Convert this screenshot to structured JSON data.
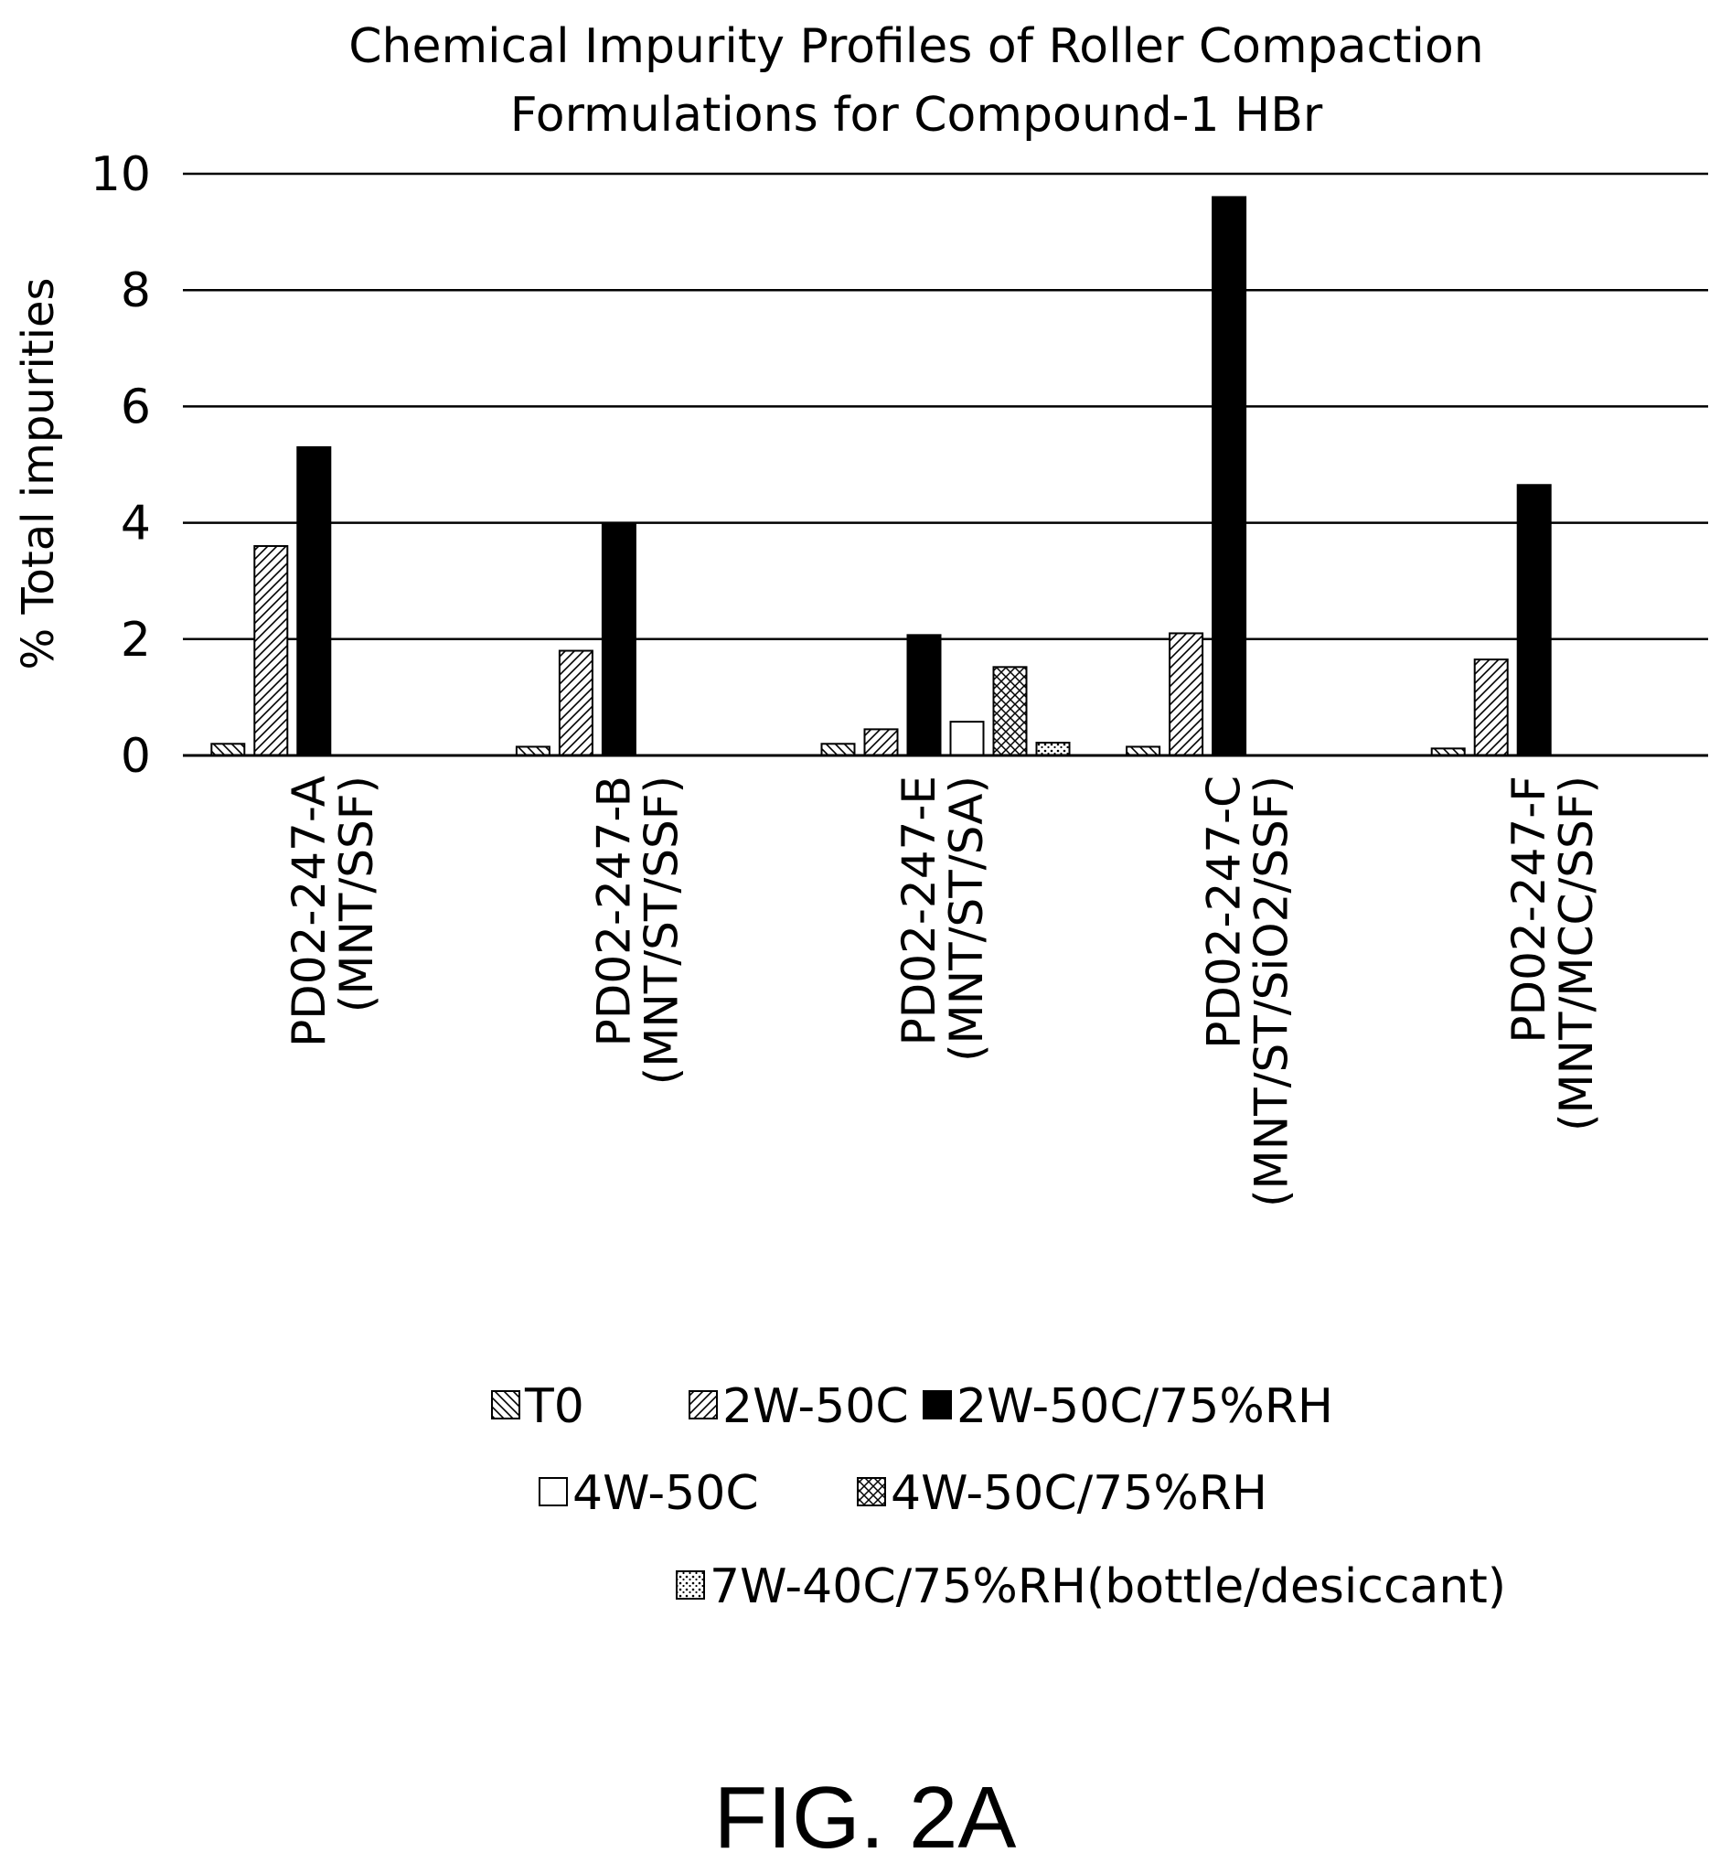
{
  "chart_data": {
    "type": "bar",
    "title": [
      "Chemical Impurity Profiles of Roller Compaction",
      "Formulations for Compound-1 HBr"
    ],
    "ylabel": "% Total impurities",
    "xlabel": "",
    "ylim": [
      0,
      10
    ],
    "yticks": [
      "0",
      "2",
      "4",
      "6",
      "8",
      "10"
    ],
    "grid": true,
    "legend_position": "bottom",
    "categories": [
      [
        "PD02-247-A",
        "(MNT/SSF)"
      ],
      [
        "PD02-247-B",
        "(MNT/ST/SSF)"
      ],
      [
        "PD02-247-E",
        "(MNT/ST/SA)"
      ],
      [
        "PD02-247-C",
        "(MNT/ST/SiO2/SSF)"
      ],
      [
        "PD02-247-F",
        "(MNT/MCC/SSF)"
      ]
    ],
    "series": [
      {
        "name": "T0",
        "pattern": "backslash-hatch",
        "values": [
          0.2,
          0.15,
          0.2,
          0.15,
          0.12
        ]
      },
      {
        "name": "2W-50C",
        "pattern": "slash-hatch",
        "values": [
          3.6,
          1.8,
          0.45,
          2.1,
          1.65
        ]
      },
      {
        "name": "2W-50C/75%RH",
        "pattern": "solid-black",
        "values": [
          5.3,
          4.0,
          2.07,
          9.6,
          4.65
        ]
      },
      {
        "name": "4W-50C",
        "pattern": "white",
        "values": [
          null,
          null,
          0.58,
          null,
          null
        ]
      },
      {
        "name": "4W-50C/75%RH",
        "pattern": "crosshatch",
        "values": [
          null,
          null,
          1.52,
          null,
          null
        ]
      },
      {
        "name": "7W-40C/75%RH(bottle/desiccant)",
        "pattern": "dotted",
        "values": [
          null,
          null,
          0.22,
          null,
          null
        ]
      }
    ]
  },
  "figure_label": "FIG. 2A"
}
